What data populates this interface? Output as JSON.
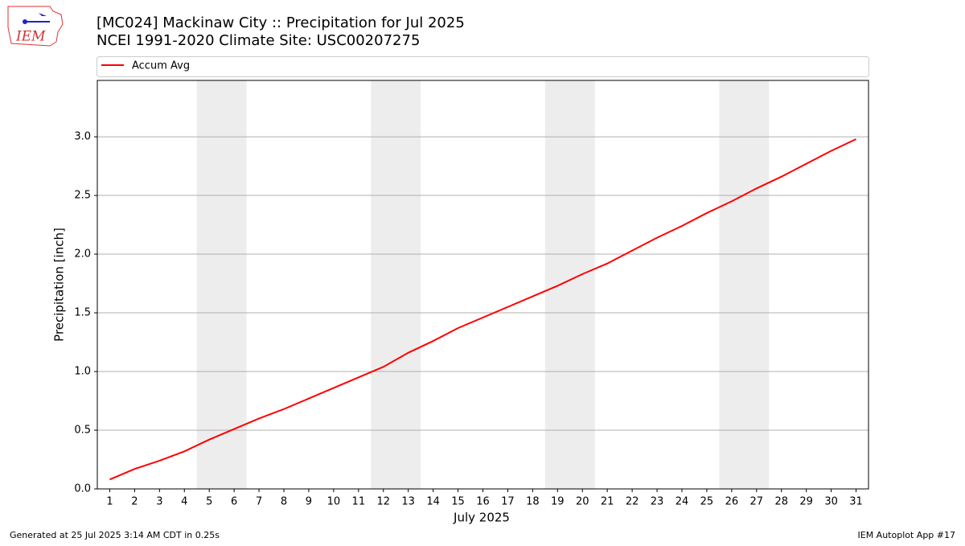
{
  "logo_text": "IEM",
  "footer_left": "Generated at 25 Jul 2025 3:14 AM CDT in 0.25s",
  "footer_right": "IEM Autoplot App #17",
  "chart_data": {
    "type": "line",
    "title": "[MC024] Mackinaw City  :: Precipitation for Jul 2025",
    "subtitle": "NCEI 1991-2020 Climate Site: USC00207275",
    "x_label": "July 2025",
    "y_label": "Precipitation [inch]",
    "x": [
      1,
      2,
      3,
      4,
      5,
      6,
      7,
      8,
      9,
      10,
      11,
      12,
      13,
      14,
      15,
      16,
      17,
      18,
      19,
      20,
      21,
      22,
      23,
      24,
      25,
      26,
      27,
      28,
      29,
      30,
      31
    ],
    "xlim": [
      0.5,
      31.5
    ],
    "xticks": [
      1,
      2,
      3,
      4,
      5,
      6,
      7,
      8,
      9,
      10,
      11,
      12,
      13,
      14,
      15,
      16,
      17,
      18,
      19,
      20,
      21,
      22,
      23,
      24,
      25,
      26,
      27,
      28,
      29,
      30,
      31
    ],
    "ylim": [
      0,
      3.48
    ],
    "yticks": [
      {
        "value": 0,
        "label": "0.0"
      },
      0.5,
      {
        "value": 1,
        "label": "1.0"
      },
      1.5,
      {
        "value": 2,
        "label": "2.0"
      },
      2.5,
      {
        "value": 3,
        "label": "3.0"
      }
    ],
    "grid": true,
    "weekend_spans": [
      [
        4.5,
        6.5
      ],
      [
        11.5,
        13.5
      ],
      [
        18.5,
        20.5
      ],
      [
        25.5,
        27.5
      ]
    ],
    "legend_position": "top",
    "series": [
      {
        "name": "Accum Avg",
        "color": "#ff0000",
        "values": [
          0.08,
          0.17,
          0.24,
          0.32,
          0.42,
          0.51,
          0.6,
          0.68,
          0.77,
          0.86,
          0.95,
          1.04,
          1.16,
          1.26,
          1.37,
          1.46,
          1.55,
          1.64,
          1.73,
          1.83,
          1.92,
          2.03,
          2.14,
          2.24,
          2.35,
          2.45,
          2.56,
          2.66,
          2.77,
          2.88,
          2.98
        ]
      }
    ]
  }
}
